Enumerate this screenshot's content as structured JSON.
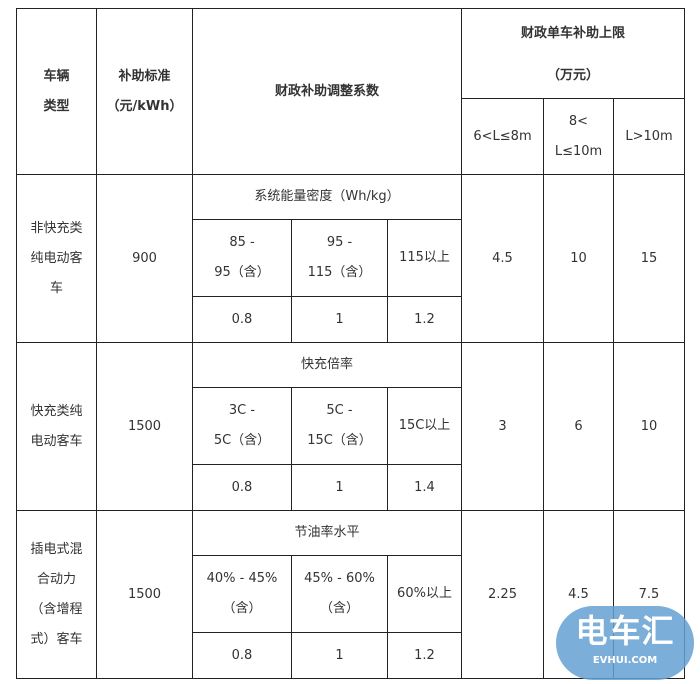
{
  "header": {
    "vehicle_type": [
      "车辆",
      "类型"
    ],
    "subsidy_standard": [
      "补助标准",
      "（元/kWh）"
    ],
    "adjustment_coefficient": "财政补助调整系数",
    "cap": [
      "财政单车补助上限",
      "（万元）"
    ],
    "lengths": [
      "6<L≤8m",
      "8<",
      "L≤10m",
      "L>10m"
    ]
  },
  "rows": [
    {
      "type": [
        "非快充类",
        "纯电动客",
        "车"
      ],
      "standard": "900",
      "metric": "系统能量密度（Wh/kg）",
      "ranges": [
        [
          "85 -",
          "95（含）"
        ],
        [
          "95 -",
          "115（含）"
        ],
        [
          "115以上"
        ]
      ],
      "coefficients": [
        "0.8",
        "1",
        "1.2"
      ],
      "caps": [
        "4.5",
        "10",
        "15"
      ]
    },
    {
      "type": [
        "快充类纯",
        "电动客车"
      ],
      "standard": "1500",
      "metric": "快充倍率",
      "ranges": [
        [
          "3C -",
          "5C（含）"
        ],
        [
          "5C -",
          "15C（含）"
        ],
        [
          "15C以上"
        ]
      ],
      "coefficients": [
        "0.8",
        "1",
        "1.4"
      ],
      "caps": [
        "3",
        "6",
        "10"
      ]
    },
    {
      "type": [
        "插电式混",
        "合动力",
        "（含增程",
        "式）客车"
      ],
      "standard": "1500",
      "metric": "节油率水平",
      "ranges": [
        [
          "40% - 45%",
          "（含）"
        ],
        [
          "45% - 60%",
          "（含）"
        ],
        [
          "60%以上"
        ]
      ],
      "coefficients": [
        "0.8",
        "1",
        "1.2"
      ],
      "caps": [
        "2.25",
        "4.5",
        "7.5"
      ]
    }
  ],
  "watermark": {
    "cn": "电车汇",
    "en": "EVHUI.COM",
    "color": "#64a0d2"
  }
}
